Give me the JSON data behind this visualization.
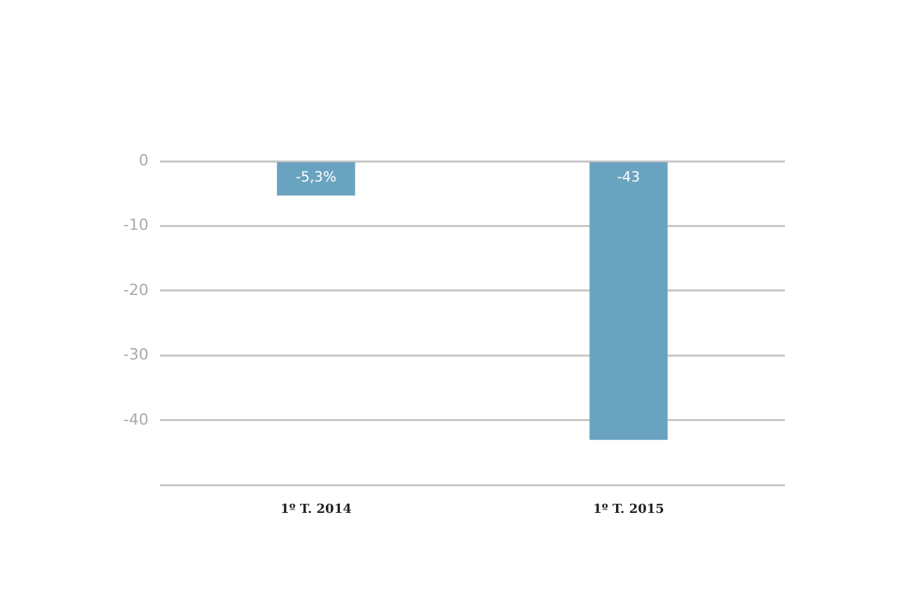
{
  "chart_data": {
    "type": "bar",
    "categories": [
      "1º T. 2014",
      "1º T. 2015"
    ],
    "values": [
      -5.3,
      -43
    ],
    "value_labels": [
      "-5,3%",
      "-43"
    ],
    "color": "#6aa3c0",
    "ylim": [
      -50,
      0
    ],
    "yticks": [
      0,
      -10,
      -20,
      -30,
      -40,
      {
        "value": -50,
        "label": null
      }
    ],
    "grid": "y"
  }
}
